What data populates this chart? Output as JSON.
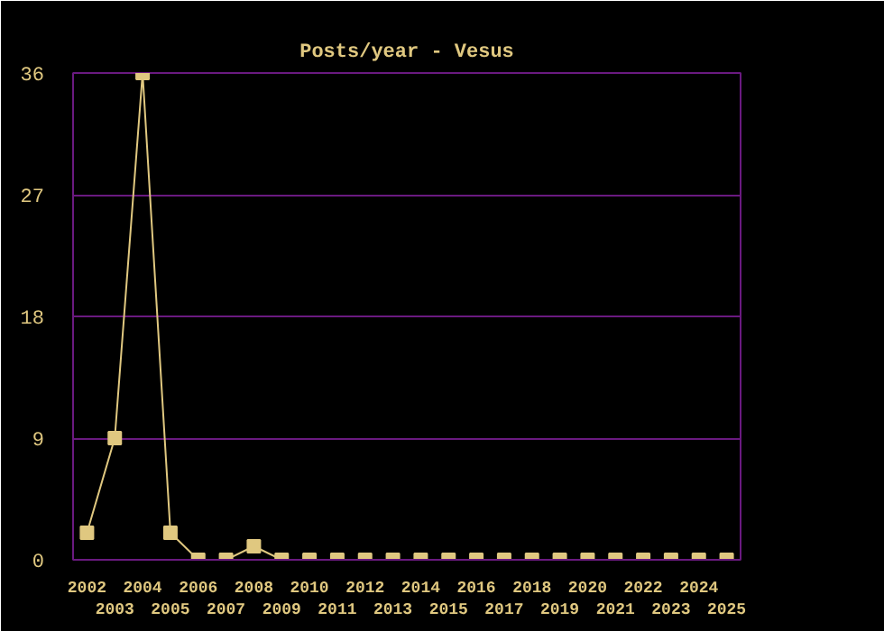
{
  "chart_data": {
    "type": "line",
    "title": "Posts/year - Vesus",
    "categories": [
      "2002",
      "2003",
      "2004",
      "2005",
      "2006",
      "2007",
      "2008",
      "2009",
      "2010",
      "2011",
      "2012",
      "2013",
      "2014",
      "2015",
      "2016",
      "2017",
      "2018",
      "2019",
      "2020",
      "2021",
      "2022",
      "2023",
      "2024",
      "2025"
    ],
    "series": [
      {
        "color": "#e0c880",
        "values": [
          2,
          9,
          36,
          2,
          0,
          0,
          1,
          0,
          0,
          0,
          0,
          0,
          0,
          0,
          0,
          0,
          0,
          0,
          0,
          0,
          0,
          0,
          0,
          0
        ]
      }
    ],
    "ylim": [
      0,
      36
    ],
    "yticks": [
      0,
      9,
      18,
      27,
      36
    ],
    "grid": "y",
    "marker": "square",
    "line_style": "solid"
  }
}
